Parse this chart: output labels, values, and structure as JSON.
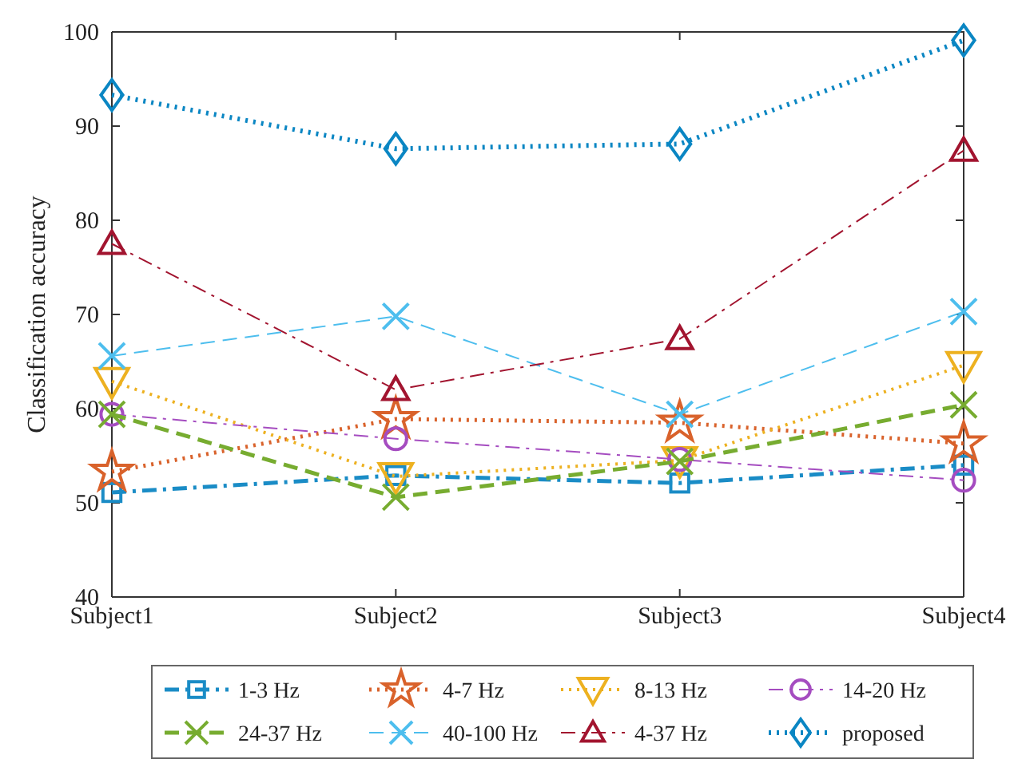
{
  "chart_data": {
    "type": "line",
    "ylabel": "Classification accuracy",
    "categories": [
      "Subject1",
      "Subject2",
      "Subject3",
      "Subject4"
    ],
    "ylim": [
      40,
      100
    ],
    "yticks": [
      40,
      50,
      60,
      70,
      80,
      90,
      100
    ],
    "legend": "bottom",
    "grid": false,
    "series": [
      {
        "name": "1-3 Hz",
        "color": "#1a8cc6",
        "marker": "square",
        "line_style": "dashdot",
        "values": [
          51.1,
          52.9,
          52.1,
          54.0
        ]
      },
      {
        "name": "4-7 Hz",
        "color": "#d9622b",
        "marker": "star",
        "line_style": "dotted",
        "values": [
          53.3,
          58.9,
          58.5,
          56.3
        ]
      },
      {
        "name": "8-13 Hz",
        "color": "#edb120",
        "marker": "triangle-down",
        "line_style": "dotted",
        "values": [
          62.9,
          52.8,
          54.5,
          64.6
        ]
      },
      {
        "name": "14-20 Hz",
        "color": "#a54cc0",
        "marker": "circle",
        "line_style": "dashdot",
        "values": [
          59.4,
          56.8,
          54.6,
          52.4
        ]
      },
      {
        "name": "24-37 Hz",
        "color": "#77ac30",
        "marker": "cross",
        "line_style": "dashed",
        "values": [
          59.4,
          50.6,
          54.4,
          60.4
        ]
      },
      {
        "name": "40-100 Hz",
        "color": "#4dbeee",
        "marker": "cross",
        "line_style": "dashed",
        "values": [
          65.6,
          69.8,
          59.4,
          70.3
        ]
      },
      {
        "name": "4-37 Hz",
        "color": "#a2142f",
        "marker": "triangle",
        "line_style": "dashdot",
        "values": [
          77.5,
          62.0,
          67.4,
          87.4
        ]
      },
      {
        "name": "proposed",
        "color": "#0a86c3",
        "marker": "diamond",
        "line_style": "dotted",
        "values": [
          93.3,
          87.6,
          88.1,
          99.1
        ]
      }
    ]
  }
}
